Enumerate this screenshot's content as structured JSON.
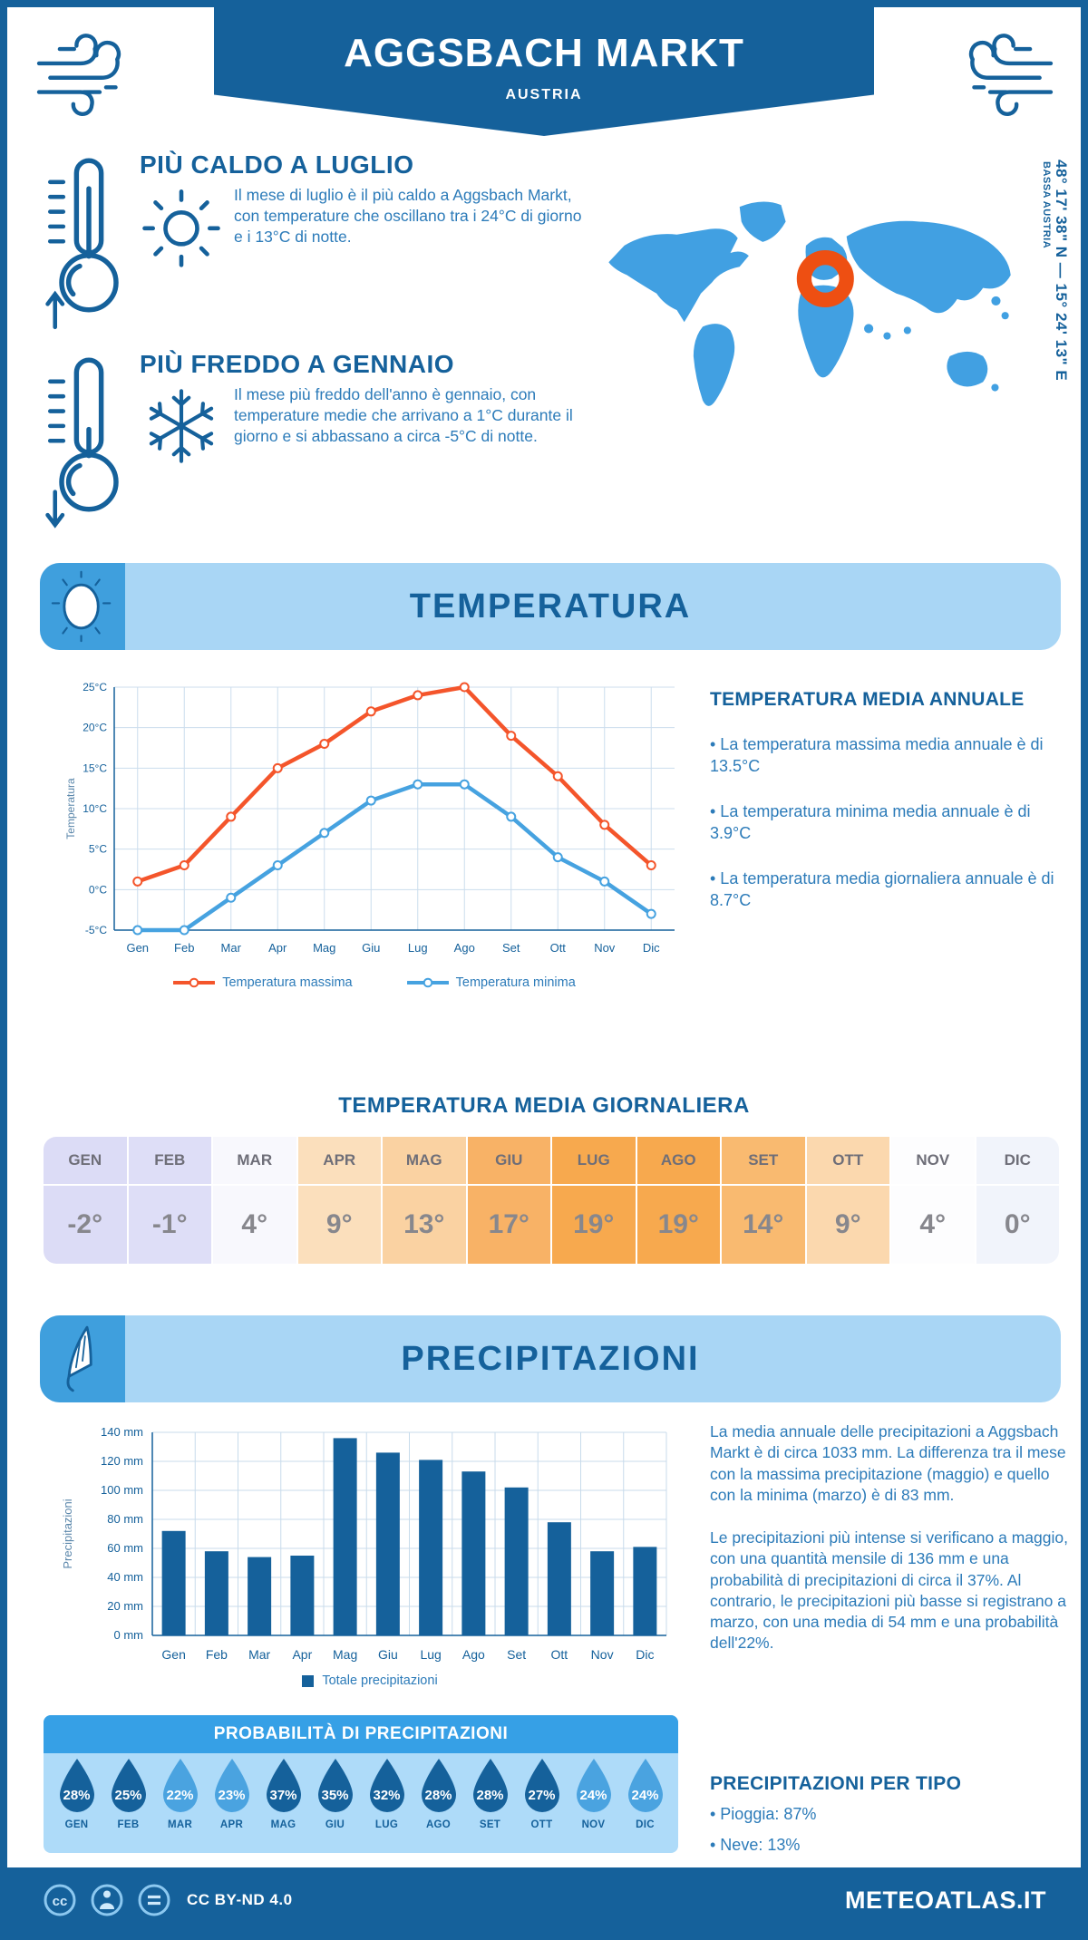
{
  "header": {
    "title": "AGGSBACH MARKT",
    "subtitle": "AUSTRIA"
  },
  "hero": {
    "warm": {
      "title": "PIÙ CALDO A LUGLIO",
      "text": "Il mese di luglio è il più caldo a Aggsbach Markt, con temperature che oscillano tra i 24°C di giorno e i 13°C di notte."
    },
    "cold": {
      "title": "PIÙ FREDDO A GENNAIO",
      "text": "Il mese più freddo dell'anno è gennaio, con temperature medie che arrivano a 1°C durante il giorno e si abbassano a circa -5°C di notte."
    },
    "coordinates": "48° 17' 38\" N — 15° 24' 13\" E",
    "region": "BASSA AUSTRIA"
  },
  "temperature": {
    "banner_title": "TEMPERATURA",
    "annual": {
      "title": "TEMPERATURA MEDIA ANNUALE",
      "bullets": [
        "• La temperatura massima media annuale è di 13.5°C",
        "• La temperatura minima media annuale è di 3.9°C",
        "• La temperatura media giornaliera annuale è di 8.7°C"
      ]
    },
    "daily": {
      "title": "TEMPERATURA MEDIA GIORNALIERA",
      "months": [
        "GEN",
        "FEB",
        "MAR",
        "APR",
        "MAG",
        "GIU",
        "LUG",
        "AGO",
        "SET",
        "OTT",
        "NOV",
        "DIC"
      ],
      "values": [
        "-2°",
        "-1°",
        "4°",
        "9°",
        "13°",
        "17°",
        "19°",
        "19°",
        "14°",
        "9°",
        "4°",
        "0°"
      ],
      "cell_colors": [
        "#dcdcf6",
        "#dedef7",
        "#f8f8fd",
        "#fbdfbc",
        "#fad2a2",
        "#f8b266",
        "#f7a94e",
        "#f7a94e",
        "#f9ba70",
        "#fbd8ae",
        "#fdfdfe",
        "#f1f4fb"
      ]
    }
  },
  "precipitation": {
    "banner_title": "PRECIPITAZIONI",
    "paragraphs": [
      "La media annuale delle precipitazioni a Aggsbach Markt è di circa 1033 mm. La differenza tra il mese con la massima precipitazione (maggio) e quello con la minima (marzo) è di 83 mm.",
      "Le precipitazioni più intense si verificano a maggio, con una quantità mensile di 136 mm e una probabilità di precipitazioni di circa il 37%. Al contrario, le precipitazioni più basse si registrano a marzo, con una media di 54 mm e una probabilità dell'22%."
    ],
    "probability": {
      "title": "PROBABILITÀ DI PRECIPITAZIONI",
      "months": [
        "GEN",
        "FEB",
        "MAR",
        "APR",
        "MAG",
        "GIU",
        "LUG",
        "AGO",
        "SET",
        "OTT",
        "NOV",
        "DIC"
      ],
      "values": [
        "28%",
        "25%",
        "22%",
        "23%",
        "37%",
        "35%",
        "32%",
        "28%",
        "28%",
        "27%",
        "24%",
        "24%"
      ],
      "drop_colors": [
        "#15619B",
        "#15619B",
        "#4aa3e0",
        "#4aa3e0",
        "#15619B",
        "#15619B",
        "#15619B",
        "#15619B",
        "#15619B",
        "#15619B",
        "#4aa3e0",
        "#4aa3e0"
      ]
    },
    "per_type": {
      "title": "PRECIPITAZIONI PER TIPO",
      "bullets": [
        "• Pioggia: 87%",
        "• Neve: 13%"
      ]
    }
  },
  "chart_data": [
    {
      "type": "line",
      "x": [
        "Gen",
        "Feb",
        "Mar",
        "Apr",
        "Mag",
        "Giu",
        "Lug",
        "Ago",
        "Set",
        "Ott",
        "Nov",
        "Dic"
      ],
      "series": [
        {
          "name": "Temperatura massima",
          "color": "#f4552b",
          "values": [
            1,
            3,
            9,
            15,
            18,
            22,
            24,
            25,
            19,
            14,
            8,
            3
          ]
        },
        {
          "name": "Temperatura minima",
          "color": "#46a2e0",
          "values": [
            -5,
            -5,
            -1,
            3,
            7,
            11,
            13,
            13,
            9,
            4,
            1,
            -3
          ]
        }
      ],
      "ylabel": "Temperatura",
      "ylim": [
        -5,
        25
      ],
      "ytick_step": 5,
      "ytick_suffix": "°C",
      "grid": true,
      "legend_position": "bottom"
    },
    {
      "type": "bar",
      "categories": [
        "Gen",
        "Feb",
        "Mar",
        "Apr",
        "Mag",
        "Giu",
        "Lug",
        "Ago",
        "Set",
        "Ott",
        "Nov",
        "Dic"
      ],
      "values": [
        72,
        58,
        54,
        55,
        136,
        126,
        121,
        113,
        102,
        78,
        58,
        61
      ],
      "legend": "Totale precipitazioni",
      "bar_color": "#15619B",
      "ylabel": "Precipitazioni",
      "ylim": [
        0,
        140
      ],
      "ytick_step": 20,
      "ytick_suffix": " mm",
      "grid": true
    }
  ],
  "footer": {
    "license": "CC BY-ND 4.0",
    "site": "METEOATLAS.IT"
  },
  "colors": {
    "dark_blue": "#15619B",
    "light_blue_banner": "#a9d6f5",
    "map_blue": "#41a0e2",
    "marker_orange": "#ee4f12"
  }
}
